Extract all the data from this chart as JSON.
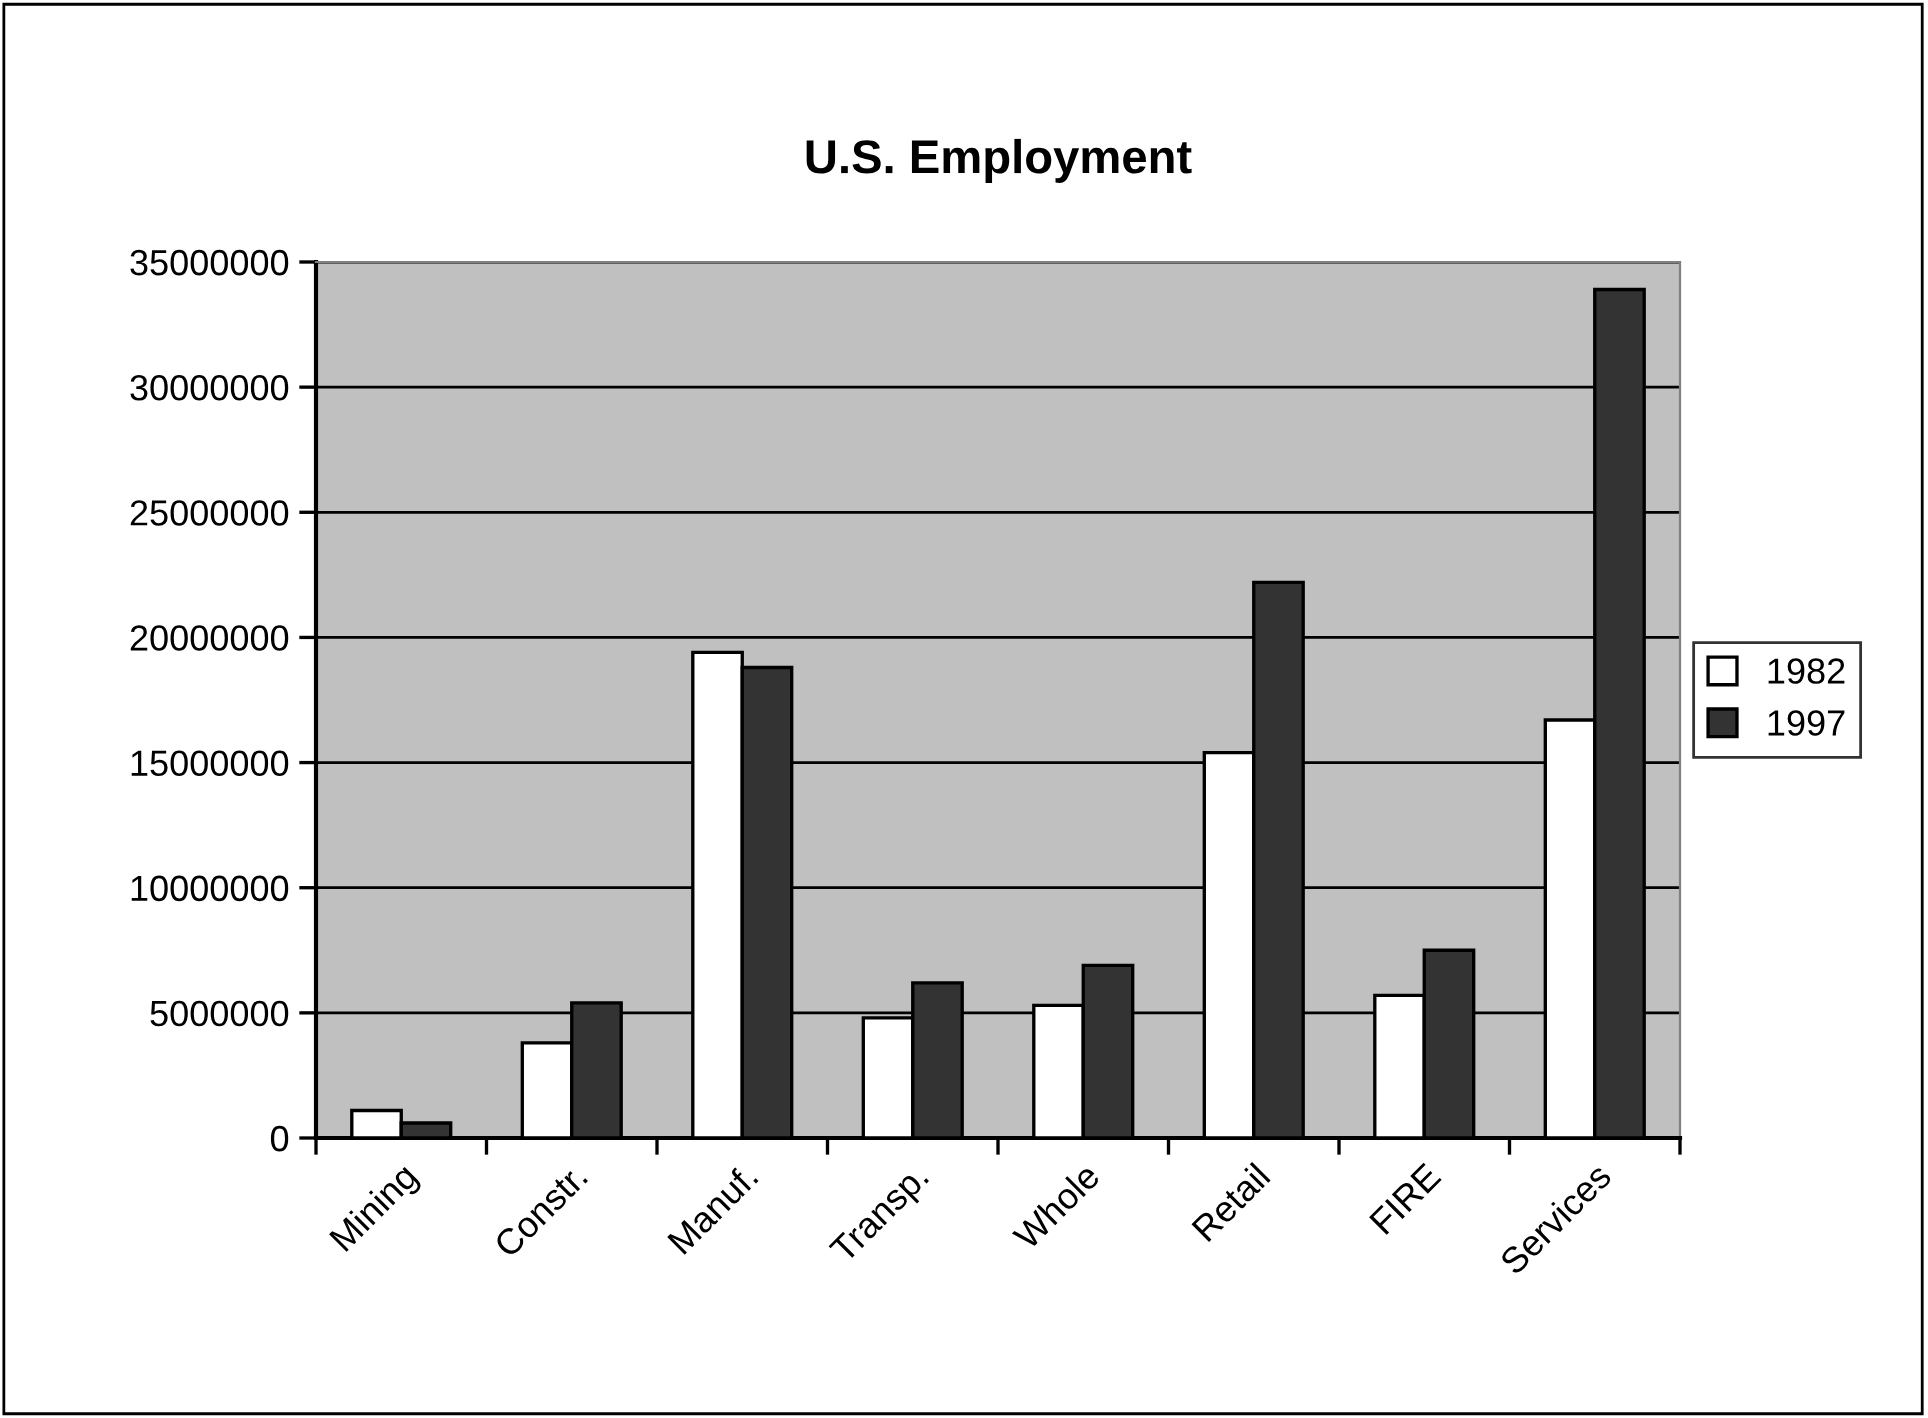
{
  "chart_data": {
    "type": "bar",
    "title": "U.S. Employment",
    "categories": [
      "Mining",
      "Constr.",
      "Manuf.",
      "Transp.",
      "Whole",
      "Retail",
      "FIRE",
      "Services"
    ],
    "series": [
      {
        "name": "1982",
        "color": "#ffffff",
        "values": [
          1100000,
          3800000,
          19400000,
          4800000,
          5300000,
          15400000,
          5700000,
          16700000
        ]
      },
      {
        "name": "1997",
        "color": "#333333",
        "values": [
          600000,
          5400000,
          18800000,
          6200000,
          6900000,
          22200000,
          7500000,
          33900000
        ]
      }
    ],
    "ylim": [
      0,
      35000000
    ],
    "yticks": [
      0,
      5000000,
      10000000,
      15000000,
      20000000,
      25000000,
      30000000,
      35000000
    ],
    "grid": "y",
    "legend": "right"
  }
}
